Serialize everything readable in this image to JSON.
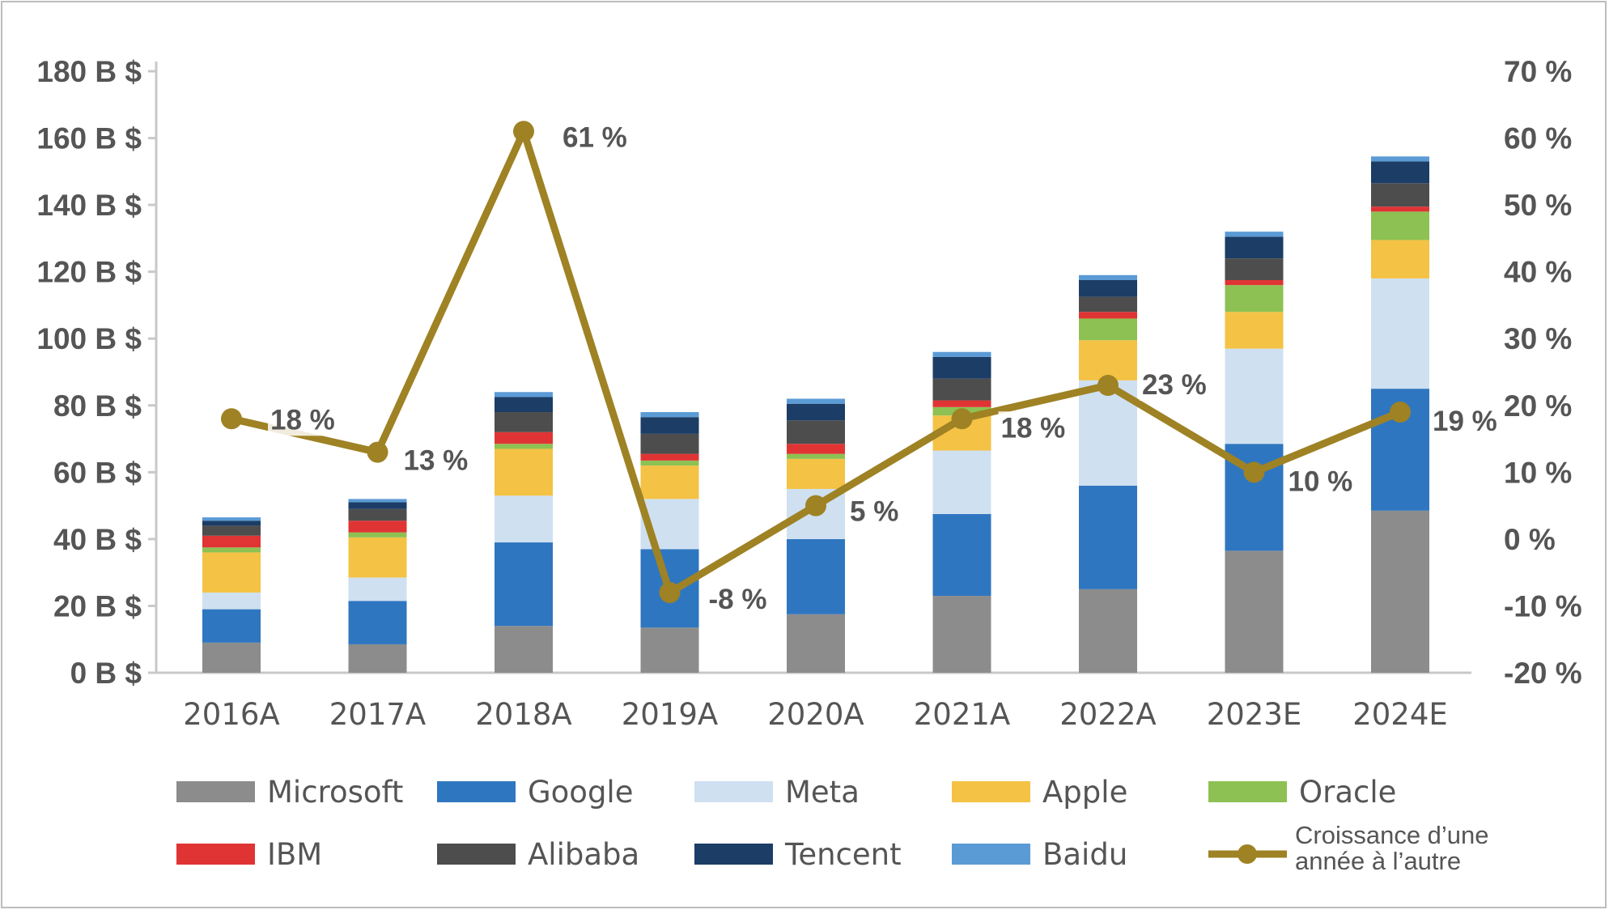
{
  "chart_data": {
    "type": "bar",
    "stacked": true,
    "categories": [
      "2016A",
      "2017A",
      "2018A",
      "2019A",
      "2020A",
      "2021A",
      "2022A",
      "2023E",
      "2024E"
    ],
    "series": [
      {
        "name": "Microsoft",
        "color": "#8c8c8c",
        "values": [
          9,
          8.5,
          14,
          13.5,
          17.5,
          23,
          25,
          36.5,
          48.5
        ]
      },
      {
        "name": "Google",
        "color": "#2f76c0",
        "values": [
          10,
          13,
          25,
          23.5,
          22.5,
          24.5,
          31,
          32,
          36.5
        ]
      },
      {
        "name": "Meta",
        "color": "#cfe0f1",
        "values": [
          5,
          7,
          14,
          15,
          15,
          19,
          31.5,
          28.5,
          33
        ]
      },
      {
        "name": "Apple",
        "color": "#f4c244",
        "values": [
          12,
          12,
          14,
          10,
          9,
          10.5,
          12,
          11,
          11.5
        ]
      },
      {
        "name": "Oracle",
        "color": "#8dc153",
        "values": [
          1.5,
          1.5,
          1.5,
          1.5,
          1.5,
          2.5,
          6.5,
          8,
          8.5
        ]
      },
      {
        "name": "IBM",
        "color": "#e03434",
        "values": [
          3.5,
          3.5,
          3.5,
          2,
          3,
          2,
          2,
          1.5,
          1.5
        ]
      },
      {
        "name": "Alibaba",
        "color": "#4d4d4d",
        "values": [
          3,
          3.5,
          6,
          6,
          7,
          6.5,
          4.5,
          6.5,
          7
        ]
      },
      {
        "name": "Tencent",
        "color": "#1b3d66",
        "values": [
          1.5,
          2,
          4.5,
          5,
          5,
          6.5,
          5,
          6.5,
          6.5
        ]
      },
      {
        "name": "Baidu",
        "color": "#5b9bd5",
        "values": [
          1,
          1,
          1.5,
          1.5,
          1.5,
          1.5,
          1.5,
          1.5,
          1.5
        ]
      }
    ],
    "line_series": {
      "name": "Croissance d’une année à l’autre",
      "color": "#9e8224",
      "axis": "right",
      "values": [
        18,
        13,
        61,
        -8,
        5,
        18,
        23,
        10,
        19
      ],
      "labels": [
        "18 %",
        "13 %",
        "61 %",
        "-8 %",
        "5 %",
        "18 %",
        "23 %",
        "10 %",
        "19 %"
      ]
    },
    "y_left": {
      "ylim": [
        0,
        180
      ],
      "ticks": [
        0,
        20,
        40,
        60,
        80,
        100,
        120,
        140,
        160,
        180
      ],
      "tick_labels": [
        "0 B $",
        "20 B $",
        "40 B $",
        "60 B $",
        "80 B $",
        "100 B $",
        "120 B $",
        "140 B $",
        "160 B $",
        "180 B $"
      ]
    },
    "y_right": {
      "ylim": [
        -20,
        70
      ],
      "ticks": [
        -20,
        -10,
        0,
        10,
        20,
        30,
        40,
        50,
        60,
        70
      ],
      "tick_labels": [
        "-20 %",
        "-10 %",
        "0 %",
        "10 %",
        "20 %",
        "30 %",
        "40 %",
        "50 %",
        "60 %",
        "70 %"
      ]
    },
    "title": "",
    "xlabel": "",
    "ylabel": "",
    "grid": false,
    "legend_position": "bottom"
  }
}
